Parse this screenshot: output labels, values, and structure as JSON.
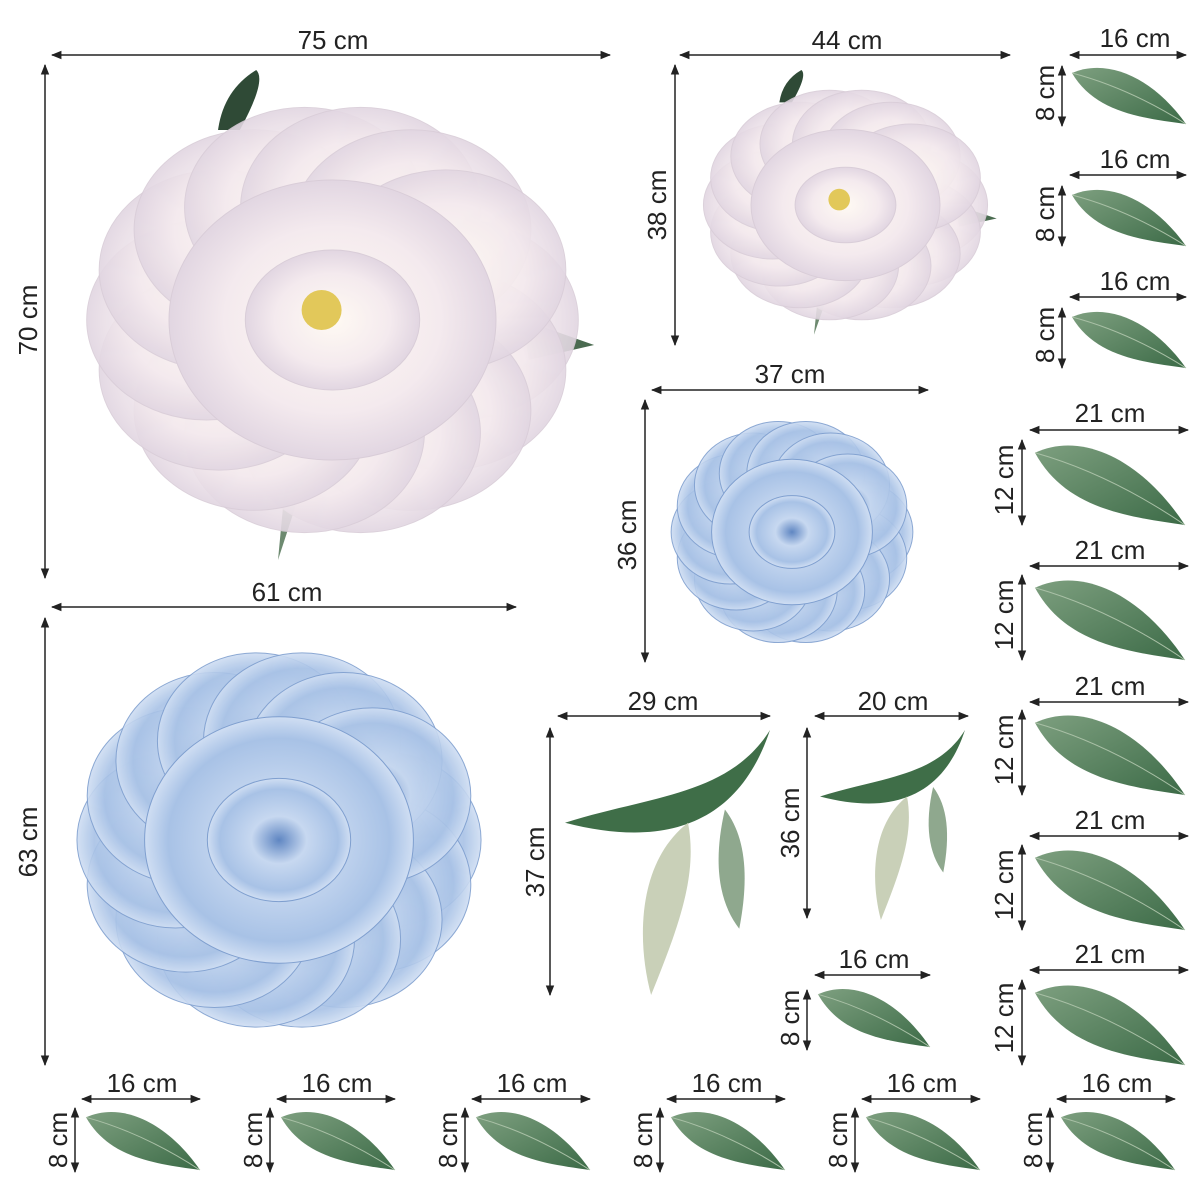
{
  "colors": {
    "white_peony": "#f3e9ec",
    "blue_peony": "#a9c3e6",
    "leaf": "#4f7a58",
    "dimension_line": "#222222"
  },
  "items": [
    {
      "name": "large-white-peony",
      "shape": "white-peony",
      "width": "75 cm",
      "height": "70 cm"
    },
    {
      "name": "small-white-peony",
      "shape": "white-peony",
      "width": "44 cm",
      "height": "38 cm"
    },
    {
      "name": "medium-blue-peony",
      "shape": "blue-peony",
      "width": "37 cm",
      "height": "36 cm"
    },
    {
      "name": "large-blue-peony",
      "shape": "blue-peony",
      "width": "61 cm",
      "height": "63 cm"
    },
    {
      "name": "large-leaf-branch",
      "shape": "branch",
      "width": "29 cm",
      "height": "37 cm"
    },
    {
      "name": "small-leaf-branch",
      "shape": "branch",
      "width": "20 cm",
      "height": "36 cm"
    },
    {
      "name": "small-leaf",
      "shape": "leaf",
      "width": "16 cm",
      "height": "8 cm"
    },
    {
      "name": "right-small-leaf-1",
      "shape": "leaf",
      "width": "16 cm",
      "height": "8 cm"
    },
    {
      "name": "right-small-leaf-2",
      "shape": "leaf",
      "width": "16 cm",
      "height": "8 cm"
    },
    {
      "name": "right-small-leaf-3",
      "shape": "leaf",
      "width": "16 cm",
      "height": "8 cm"
    },
    {
      "name": "right-medium-leaf-1",
      "shape": "leaf",
      "width": "21 cm",
      "height": "12 cm"
    },
    {
      "name": "right-medium-leaf-2",
      "shape": "leaf",
      "width": "21 cm",
      "height": "12 cm"
    },
    {
      "name": "right-medium-leaf-3",
      "shape": "leaf",
      "width": "21 cm",
      "height": "12 cm"
    },
    {
      "name": "right-medium-leaf-4",
      "shape": "leaf",
      "width": "21 cm",
      "height": "12 cm"
    },
    {
      "name": "right-medium-leaf-5",
      "shape": "leaf",
      "width": "21 cm",
      "height": "12 cm"
    },
    {
      "name": "bottom-small-leaf-1",
      "shape": "leaf",
      "width": "16 cm",
      "height": "8 cm"
    },
    {
      "name": "bottom-small-leaf-2",
      "shape": "leaf",
      "width": "16 cm",
      "height": "8 cm"
    },
    {
      "name": "bottom-small-leaf-3",
      "shape": "leaf",
      "width": "16 cm",
      "height": "8 cm"
    },
    {
      "name": "bottom-small-leaf-4",
      "shape": "leaf",
      "width": "16 cm",
      "height": "8 cm"
    },
    {
      "name": "bottom-small-leaf-5",
      "shape": "leaf",
      "width": "16 cm",
      "height": "8 cm"
    },
    {
      "name": "bottom-small-leaf-6",
      "shape": "leaf",
      "width": "16 cm",
      "height": "8 cm"
    }
  ]
}
